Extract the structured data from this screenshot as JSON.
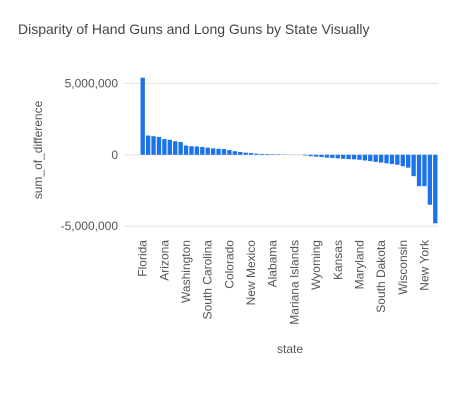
{
  "chart_data": {
    "type": "bar",
    "title": "Disparity of Hand Guns and Long Guns by State Visually",
    "x_label": "state",
    "y_label": "sum_of_difference",
    "color": "#1a73e8",
    "grid": true,
    "ylim": [
      -5200000,
      5800000
    ],
    "yticks": [
      {
        "value": -5000000,
        "label": "-5,000,000"
      },
      0,
      {
        "value": 5000000,
        "label": "5,000,000"
      }
    ],
    "categories": [
      "Florida",
      null,
      null,
      null,
      "Arizona",
      null,
      null,
      null,
      "Washington",
      null,
      null,
      null,
      "South Carolina",
      null,
      null,
      null,
      "Colorado",
      null,
      null,
      null,
      "New Mexico",
      null,
      null,
      null,
      "Alabama",
      null,
      null,
      null,
      "Mariana Islands",
      null,
      null,
      null,
      "Wyoming",
      null,
      null,
      null,
      "Kansas",
      null,
      null,
      null,
      "Maryland",
      null,
      null,
      null,
      "South Dakota",
      null,
      null,
      null,
      "Wisconsin",
      null,
      null,
      null,
      "New York",
      null,
      null
    ],
    "values": [
      5400000,
      1350000,
      1300000,
      1250000,
      1100000,
      1050000,
      950000,
      900000,
      650000,
      600000,
      580000,
      550000,
      500000,
      450000,
      420000,
      400000,
      330000,
      250000,
      200000,
      150000,
      120000,
      80000,
      60000,
      50000,
      40000,
      30000,
      20000,
      10000,
      5000,
      -10000,
      -50000,
      -100000,
      -130000,
      -160000,
      -200000,
      -220000,
      -250000,
      -280000,
      -300000,
      -320000,
      -350000,
      -400000,
      -450000,
      -500000,
      -550000,
      -600000,
      -650000,
      -700000,
      -800000,
      -900000,
      -1500000,
      -2200000,
      -2200000,
      -3500000,
      -4800000
    ]
  }
}
